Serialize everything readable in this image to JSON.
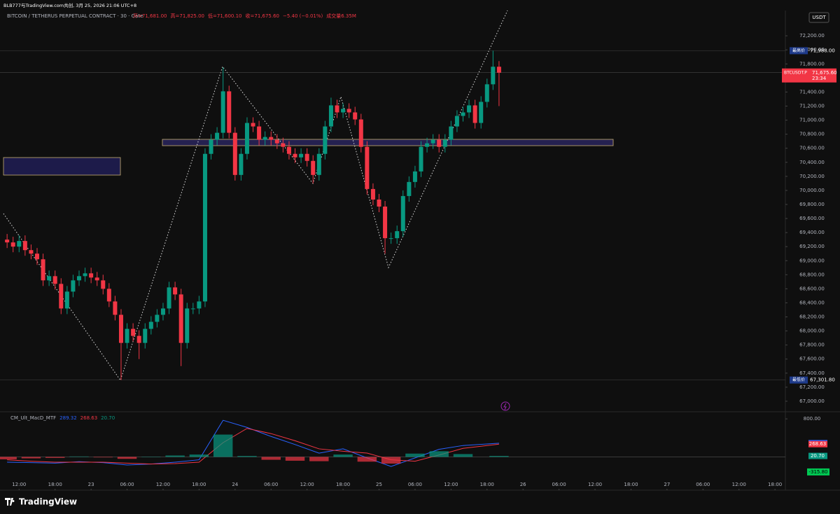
{
  "header": {
    "credit": "BLB777与TradingView.com共创, 3月 25, 2026 21:06 UTC+8",
    "symbol_line": "BITCOIN / TETHERUS PERPETUAL CONTRACT · 30 · Gate",
    "quote": [
      "开=71,681.00",
      "高=71,825.00",
      "低=71,600.10",
      "收=71,675.60",
      "−5.40 (−0.01%)",
      "成交量6.35M"
    ],
    "currency": "USDT"
  },
  "footer": {
    "brand": "TradingView"
  },
  "chart_data": [
    {
      "type": "candlestick",
      "up_color": "#089981",
      "down_color": "#f23645",
      "xlim": [
        -2.6,
        127.5
      ],
      "ylim": [
        66880,
        72560
      ],
      "xticks": [
        {
          "value": 0,
          "label": "12:00"
        },
        {
          "value": 6,
          "label": "18:00"
        },
        {
          "value": 12,
          "label": "23"
        },
        {
          "value": 18,
          "label": "06:00"
        },
        {
          "value": 24,
          "label": "12:00"
        },
        {
          "value": 30,
          "label": "18:00"
        },
        {
          "value": 36,
          "label": "24"
        },
        {
          "value": 42,
          "label": "06:00"
        },
        {
          "value": 48,
          "label": "12:00"
        },
        {
          "value": 54,
          "label": "18:00"
        },
        {
          "value": 60,
          "label": "25"
        },
        {
          "value": 66,
          "label": "06:00"
        },
        {
          "value": 72,
          "label": "12:00"
        },
        {
          "value": 78,
          "label": "18:00"
        },
        {
          "value": 84,
          "label": "26"
        },
        {
          "value": 90,
          "label": "06:00"
        },
        {
          "value": 96,
          "label": "12:00"
        },
        {
          "value": 102,
          "label": "18:00"
        },
        {
          "value": 108,
          "label": "27"
        },
        {
          "value": 114,
          "label": "06:00"
        },
        {
          "value": 120,
          "label": "12:00"
        },
        {
          "value": 126,
          "label": "18:00"
        }
      ],
      "yticks": [
        {
          "value": 67000,
          "label": "67,000.00"
        },
        {
          "value": 67200,
          "label": "67,200.00"
        },
        {
          "value": 67400,
          "label": "67,400.00"
        },
        {
          "value": 67600,
          "label": "67,600.00"
        },
        {
          "value": 67800,
          "label": "67,800.00"
        },
        {
          "value": 68000,
          "label": "68,000.00"
        },
        {
          "value": 68200,
          "label": "68,200.00"
        },
        {
          "value": 68400,
          "label": "68,400.00"
        },
        {
          "value": 68600,
          "label": "68,600.00"
        },
        {
          "value": 68800,
          "label": "68,800.00"
        },
        {
          "value": 69000,
          "label": "69,000.00"
        },
        {
          "value": 69200,
          "label": "69,200.00"
        },
        {
          "value": 69400,
          "label": "69,400.00"
        },
        {
          "value": 69600,
          "label": "69,600.00"
        },
        {
          "value": 69800,
          "label": "69,800.00"
        },
        {
          "value": 70000,
          "label": "70,000.00"
        },
        {
          "value": 70200,
          "label": "70,200.00"
        },
        {
          "value": 70400,
          "label": "70,400.00"
        },
        {
          "value": 70600,
          "label": "70,600.00"
        },
        {
          "value": 70800,
          "label": "70,800.00"
        },
        {
          "value": 71000,
          "label": "71,000.00"
        },
        {
          "value": 71200,
          "label": "71,200.00"
        },
        {
          "value": 71400,
          "label": "71,400.00"
        },
        {
          "value": 71600,
          "label": "71,600.00"
        },
        {
          "value": 71800,
          "label": "71,800.00"
        },
        {
          "value": 72000,
          "label": "72,000.00"
        },
        {
          "value": 72200,
          "label": "72,200.00"
        }
      ],
      "high_mark": {
        "label": "最高价",
        "value": 71988,
        "value_label": "71,988.00"
      },
      "low_mark": {
        "label": "最低价",
        "value": 67301.8,
        "value_label": "67,301.80"
      },
      "last_mark": {
        "label": "BTCUSDT.P",
        "value": 71675.6,
        "value_label": "71,675.60",
        "countdown": "23:34"
      },
      "x": [
        -2,
        -1,
        0,
        1,
        2,
        3,
        4,
        5,
        6,
        7,
        8,
        9,
        10,
        11,
        12,
        13,
        14,
        15,
        16,
        17,
        18,
        19,
        20,
        21,
        22,
        23,
        24,
        25,
        26,
        27,
        28,
        29,
        30,
        31,
        32,
        33,
        34,
        35,
        36,
        37,
        38,
        39,
        40,
        41,
        42,
        43,
        44,
        45,
        46,
        47,
        48,
        49,
        50,
        51,
        52,
        53,
        54,
        55,
        56,
        57,
        58,
        59,
        60,
        61,
        62,
        63,
        64,
        65,
        66,
        67,
        68,
        69,
        70,
        71,
        72,
        73,
        74,
        75,
        76,
        77,
        78,
        79,
        80
      ],
      "open": [
        69300,
        69260,
        69200,
        69280,
        69150,
        69100,
        69020,
        68720,
        68780,
        68670,
        68320,
        68560,
        68720,
        68780,
        68820,
        68760,
        68720,
        68600,
        68420,
        68230,
        67830,
        68030,
        67930,
        67830,
        68030,
        68130,
        68230,
        68320,
        68620,
        68520,
        67830,
        68320,
        68320,
        68420,
        70520,
        70720,
        70820,
        71410,
        70820,
        70220,
        70520,
        70960,
        70910,
        70720,
        70760,
        70720,
        70670,
        70620,
        70520,
        70470,
        70520,
        70420,
        70220,
        70520,
        70910,
        71210,
        71110,
        71160,
        71110,
        71010,
        70620,
        70020,
        69870,
        69770,
        69320,
        69320,
        69420,
        69920,
        70120,
        70270,
        70620,
        70670,
        70720,
        70620,
        70720,
        70910,
        71060,
        71110,
        71210,
        70960,
        71260,
        71510,
        71760
      ],
      "high": [
        69380,
        69340,
        69360,
        69360,
        69230,
        69180,
        69100,
        68860,
        68860,
        68750,
        68640,
        68800,
        68860,
        68900,
        68900,
        68840,
        68800,
        68680,
        68500,
        68310,
        68110,
        68110,
        68010,
        68110,
        68210,
        68310,
        68400,
        68700,
        68700,
        68600,
        68400,
        68400,
        68500,
        70600,
        70800,
        70900,
        71750,
        71490,
        70900,
        70600,
        71040,
        71040,
        70990,
        70840,
        70840,
        70800,
        70750,
        70700,
        70600,
        70600,
        70600,
        70500,
        70600,
        70990,
        71320,
        71290,
        71240,
        71240,
        71190,
        71090,
        70700,
        70100,
        69950,
        69850,
        69400,
        69500,
        70000,
        70200,
        70350,
        70700,
        70750,
        70800,
        70800,
        70800,
        70990,
        71140,
        71190,
        71290,
        71290,
        71340,
        71590,
        71988,
        71840
      ],
      "low": [
        69180,
        69120,
        69120,
        69070,
        69020,
        68940,
        68640,
        68640,
        68590,
        68240,
        68240,
        68480,
        68640,
        68700,
        68680,
        68640,
        68520,
        68340,
        68150,
        67301.8,
        67750,
        67850,
        67600,
        67750,
        67950,
        68050,
        68150,
        68240,
        68440,
        67500,
        67750,
        68240,
        68240,
        68340,
        70440,
        70640,
        70740,
        70740,
        70140,
        70140,
        70440,
        70830,
        70640,
        70640,
        70640,
        70590,
        70540,
        70440,
        70390,
        70390,
        70340,
        70100,
        70140,
        70440,
        70830,
        71030,
        71030,
        71030,
        70930,
        70540,
        69940,
        69790,
        69690,
        69100,
        69240,
        69240,
        69340,
        69840,
        70040,
        70190,
        70540,
        70590,
        70540,
        70540,
        70640,
        70830,
        70980,
        71030,
        70880,
        70880,
        71180,
        71430,
        71200
      ],
      "close": [
        69260,
        69200,
        69280,
        69150,
        69100,
        69020,
        68720,
        68780,
        68670,
        68320,
        68560,
        68720,
        68780,
        68820,
        68760,
        68720,
        68600,
        68420,
        68230,
        67830,
        68030,
        67930,
        67830,
        68030,
        68130,
        68230,
        68320,
        68620,
        68520,
        67830,
        68320,
        68320,
        68420,
        70520,
        70720,
        70820,
        71410,
        70820,
        70220,
        70520,
        70960,
        70910,
        70720,
        70760,
        70720,
        70670,
        70620,
        70520,
        70470,
        70520,
        70420,
        70220,
        70520,
        70910,
        71210,
        71110,
        71160,
        71110,
        71010,
        70620,
        70020,
        69870,
        69770,
        69320,
        69320,
        69420,
        69920,
        70120,
        70270,
        70620,
        70670,
        70720,
        70620,
        70720,
        70910,
        71060,
        71110,
        71210,
        70960,
        71260,
        71510,
        71760,
        71675.6
      ]
    },
    {
      "type": "line",
      "title": "CM_Ult_MacD_MTF",
      "up_color": "#089981",
      "down_color": "#f23645",
      "xlim": [
        -2.6,
        127.5
      ],
      "ylim": [
        -670,
        920
      ],
      "yticks": [
        {
          "value": 800,
          "label": "800.00"
        }
      ],
      "level": {
        "value": -315.8,
        "label": "-315.80"
      },
      "x": [
        -2,
        2,
        6,
        10,
        14,
        18,
        22,
        26,
        30,
        34,
        38,
        42,
        46,
        50,
        54,
        58,
        62,
        66,
        70,
        74,
        80
      ],
      "series": [
        {
          "name": "289.32",
          "color": "#2962ff",
          "values": [
            -110,
            -120,
            -130,
            -100,
            -120,
            -170,
            -150,
            -110,
            -60,
            770,
            620,
            430,
            260,
            80,
            170,
            -20,
            -200,
            -20,
            160,
            240,
            289.32
          ]
        },
        {
          "name": "268.63",
          "color": "#f23645",
          "values": [
            -60,
            -90,
            -110,
            -110,
            -110,
            -130,
            -150,
            -140,
            -110,
            300,
            600,
            490,
            340,
            170,
            120,
            80,
            -60,
            -90,
            40,
            180,
            268.63
          ]
        },
        {
          "name": "20.70",
          "color": "#089981",
          "style": "histogram",
          "values": [
            -50,
            -30,
            -20,
            10,
            -10,
            -40,
            0,
            30,
            50,
            470,
            20,
            -60,
            -80,
            -90,
            50,
            -100,
            -140,
            70,
            120,
            60,
            20.7
          ]
        }
      ]
    }
  ]
}
